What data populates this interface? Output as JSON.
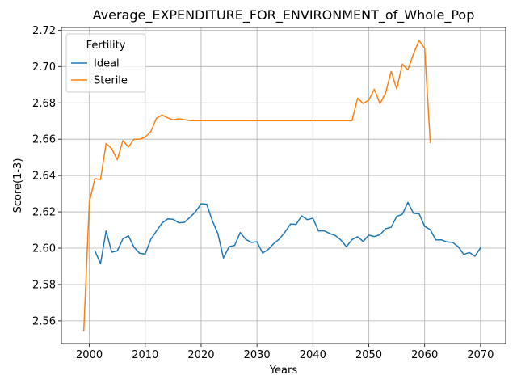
{
  "chart_data": {
    "type": "line",
    "title": "Average_EXPENDITURE_FOR_ENVIRONMENT_of_Whole_Pop",
    "xlabel": "Years",
    "ylabel": "Score(1-3)",
    "xlim": [
      1995,
      2074.5
    ],
    "ylim": [
      2.5475,
      2.7215
    ],
    "xticks": [
      2000,
      2010,
      2020,
      2030,
      2040,
      2050,
      2060,
      2070
    ],
    "yticks": [
      2.56,
      2.58,
      2.6,
      2.62,
      2.64,
      2.66,
      2.68,
      2.7,
      2.72
    ],
    "xtick_labels": [
      "2000",
      "2010",
      "2020",
      "2030",
      "2040",
      "2050",
      "2060",
      "2070"
    ],
    "ytick_labels": [
      "2.56",
      "2.58",
      "2.60",
      "2.62",
      "2.64",
      "2.66",
      "2.68",
      "2.70",
      "2.72"
    ],
    "grid": true,
    "legend": {
      "title": "Fertility",
      "placement": "upper-left"
    },
    "series": [
      {
        "name": "Ideal",
        "color": "#1f77b4",
        "x": [
          2001,
          2002,
          2003,
          2004,
          2005,
          2006,
          2007,
          2008,
          2009,
          2010,
          2011,
          2012,
          2013,
          2014,
          2015,
          2016,
          2017,
          2018,
          2019,
          2020,
          2021,
          2022,
          2023,
          2024,
          2025,
          2026,
          2027,
          2028,
          2029,
          2030,
          2031,
          2032,
          2033,
          2034,
          2035,
          2036,
          2037,
          2038,
          2039,
          2040,
          2041,
          2042,
          2043,
          2044,
          2045,
          2046,
          2047,
          2048,
          2049,
          2050,
          2051,
          2052,
          2053,
          2054,
          2055,
          2056,
          2057,
          2058,
          2059,
          2060,
          2061,
          2062,
          2063,
          2064,
          2065,
          2066,
          2067,
          2068,
          2069,
          2070
        ],
        "values": [
          2.5985,
          2.5915,
          2.6095,
          2.5978,
          2.5985,
          2.6051,
          2.6068,
          2.6005,
          2.5972,
          2.5968,
          2.6049,
          2.6094,
          2.6138,
          2.6161,
          2.6159,
          2.614,
          2.6142,
          2.617,
          2.62,
          2.6245,
          2.6242,
          2.6152,
          2.608,
          2.5946,
          2.6008,
          2.6015,
          2.6086,
          2.6048,
          2.6032,
          2.6035,
          2.5973,
          2.5993,
          2.6025,
          2.605,
          2.6088,
          2.6133,
          2.6131,
          2.6178,
          2.6157,
          2.6165,
          2.6095,
          2.6096,
          2.6081,
          2.607,
          2.6045,
          2.6008,
          2.6047,
          2.6063,
          2.6037,
          2.6072,
          2.6064,
          2.6074,
          2.6107,
          2.6115,
          2.6175,
          2.6186,
          2.6252,
          2.6192,
          2.619,
          2.612,
          2.6102,
          2.6045,
          2.6046,
          2.6034,
          2.6032,
          2.6008,
          2.5966,
          2.5976,
          2.5956,
          2.6002
        ]
      },
      {
        "name": "Sterile",
        "color": "#ff7f0e",
        "x": [
          1999,
          2000,
          2001,
          2002,
          2003,
          2004,
          2005,
          2006,
          2007,
          2008,
          2009,
          2010,
          2011,
          2012,
          2013,
          2014,
          2015,
          2016,
          2017,
          2018,
          2020,
          2025,
          2030,
          2035,
          2040,
          2045,
          2047,
          2048,
          2049,
          2050,
          2051,
          2052,
          2053,
          2054,
          2055,
          2056,
          2057,
          2058,
          2059,
          2060,
          2061
        ],
        "values": [
          2.5545,
          2.6255,
          2.6383,
          2.6378,
          2.6577,
          2.6548,
          2.6487,
          2.6592,
          2.6557,
          2.66,
          2.66,
          2.6612,
          2.6642,
          2.6715,
          2.6733,
          2.6718,
          2.6706,
          2.6712,
          2.6708,
          2.6702,
          2.6702,
          2.6702,
          2.6702,
          2.6702,
          2.6702,
          2.6702,
          2.6702,
          2.6826,
          2.6796,
          2.6815,
          2.6875,
          2.6796,
          2.6853,
          2.6973,
          2.6877,
          2.7013,
          2.6982,
          2.707,
          2.7143,
          2.71,
          2.6583
        ]
      }
    ]
  }
}
